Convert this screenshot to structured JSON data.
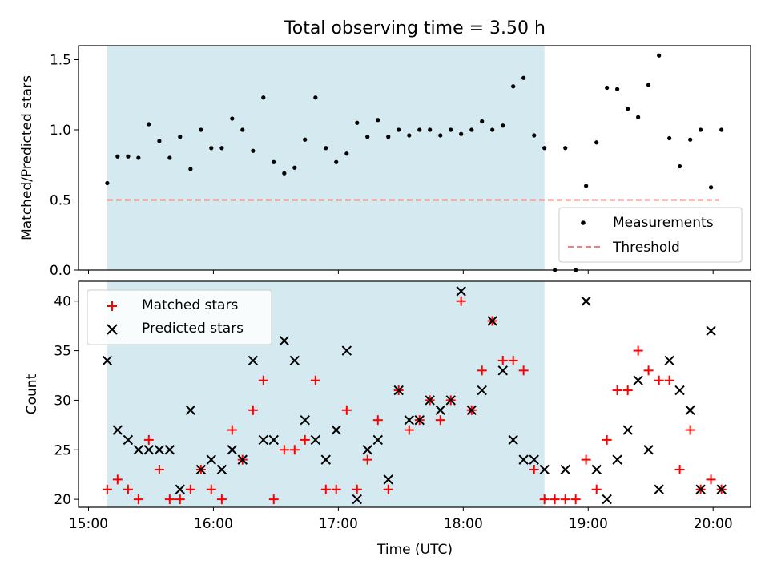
{
  "chart_data": {
    "title": "Total observing time = 3.50 h",
    "xlabel": "Time (UTC)",
    "x_ticks": [
      {
        "value": 15.0,
        "label": "15:00"
      },
      {
        "value": 16.0,
        "label": "16:00"
      },
      {
        "value": 17.0,
        "label": "17:00"
      },
      {
        "value": 18.0,
        "label": "18:00"
      },
      {
        "value": 19.0,
        "label": "19:00"
      },
      {
        "value": 20.0,
        "label": "20:00"
      }
    ],
    "xlim": [
      14.92,
      20.3
    ],
    "observing_window": [
      15.15,
      18.65
    ],
    "colors": {
      "window": "#d4eaf0",
      "measurement": "#000000",
      "threshold": "#f08080",
      "matched": "#ff0000",
      "predicted": "#000000"
    },
    "panels": [
      {
        "id": "ratio",
        "ylabel": "Matched/Predicted stars",
        "ylim": [
          0,
          1.6
        ],
        "yticks": [
          0.0,
          0.5,
          1.0,
          1.5
        ],
        "ytick_labels": [
          "0.0",
          "0.5",
          "1.0",
          "1.5"
        ],
        "legend": {
          "position": "lower-right",
          "entries": [
            "Measurements",
            "Threshold"
          ]
        },
        "threshold": {
          "value": 0.5,
          "x_range": [
            15.15,
            20.05
          ],
          "name": "Threshold"
        },
        "measurements": {
          "name": "Measurements",
          "x": [
            15.15,
            15.233,
            15.317,
            15.4,
            15.483,
            15.567,
            15.65,
            15.733,
            15.817,
            15.9,
            15.983,
            16.067,
            16.15,
            16.233,
            16.317,
            16.4,
            16.483,
            16.567,
            16.65,
            16.733,
            16.817,
            16.9,
            16.983,
            17.067,
            17.15,
            17.233,
            17.317,
            17.4,
            17.483,
            17.567,
            17.65,
            17.733,
            17.817,
            17.9,
            17.983,
            18.067,
            18.15,
            18.233,
            18.317,
            18.4,
            18.483,
            18.567,
            18.65,
            18.733,
            18.817,
            18.9,
            18.983,
            19.067,
            19.15,
            19.233,
            19.317,
            19.4,
            19.483,
            19.567,
            19.65,
            19.733,
            19.817,
            19.9,
            19.983,
            20.067
          ],
          "y": [
            0.62,
            0.81,
            0.81,
            0.8,
            1.04,
            0.92,
            0.8,
            0.95,
            0.72,
            1.0,
            0.87,
            0.87,
            1.08,
            1.0,
            0.85,
            1.23,
            0.77,
            0.69,
            0.73,
            0.93,
            1.23,
            0.87,
            0.77,
            0.83,
            1.05,
            0.95,
            1.07,
            0.95,
            1.0,
            0.96,
            1.0,
            1.0,
            0.96,
            1.0,
            0.97,
            1.0,
            1.06,
            1.0,
            1.03,
            1.31,
            1.37,
            0.96,
            0.87,
            0.0,
            0.87,
            0.0,
            0.6,
            0.91,
            1.3,
            1.29,
            1.15,
            1.09,
            1.32,
            1.53,
            0.94,
            0.74,
            0.93,
            1.0,
            0.59,
            1.0
          ]
        }
      },
      {
        "id": "counts",
        "ylabel": "Count",
        "ylim": [
          19.2,
          42
        ],
        "yticks": [
          20,
          25,
          30,
          35,
          40
        ],
        "ytick_labels": [
          "20",
          "25",
          "30",
          "35",
          "40"
        ],
        "legend": {
          "position": "upper-left",
          "entries": [
            "Matched stars",
            "Predicted stars"
          ]
        },
        "series": [
          {
            "name": "Matched stars",
            "marker": "plus",
            "x": [
              15.15,
              15.233,
              15.317,
              15.4,
              15.483,
              15.567,
              15.65,
              15.733,
              15.817,
              15.9,
              15.983,
              16.067,
              16.15,
              16.233,
              16.317,
              16.4,
              16.483,
              16.567,
              16.65,
              16.733,
              16.817,
              16.9,
              16.983,
              17.067,
              17.15,
              17.233,
              17.317,
              17.4,
              17.483,
              17.567,
              17.65,
              17.733,
              17.817,
              17.9,
              17.983,
              18.067,
              18.15,
              18.233,
              18.317,
              18.4,
              18.483,
              18.567,
              18.65,
              18.733,
              18.817,
              18.9,
              18.983,
              19.067,
              19.15,
              19.233,
              19.317,
              19.4,
              19.483,
              19.567,
              19.65,
              19.733,
              19.817,
              19.9,
              19.983,
              20.067
            ],
            "values": [
              21,
              22,
              21,
              20,
              26,
              23,
              20,
              20,
              21,
              23,
              21,
              20,
              27,
              24,
              29,
              32,
              20,
              25,
              25,
              26,
              32,
              21,
              21,
              29,
              21,
              24,
              28,
              21,
              31,
              27,
              28,
              30,
              28,
              30,
              40,
              29,
              33,
              38,
              34,
              34,
              33,
              23,
              20,
              20,
              20,
              20,
              24,
              21,
              26,
              31,
              31,
              35,
              33,
              32,
              32,
              23,
              27,
              21,
              22,
              21
            ]
          },
          {
            "name": "Predicted stars",
            "marker": "x",
            "x": [
              15.15,
              15.233,
              15.317,
              15.4,
              15.483,
              15.567,
              15.65,
              15.733,
              15.817,
              15.9,
              15.983,
              16.067,
              16.15,
              16.233,
              16.317,
              16.4,
              16.483,
              16.567,
              16.65,
              16.733,
              16.817,
              16.9,
              16.983,
              17.067,
              17.15,
              17.233,
              17.317,
              17.4,
              17.483,
              17.567,
              17.65,
              17.733,
              17.817,
              17.9,
              17.983,
              18.067,
              18.15,
              18.233,
              18.317,
              18.4,
              18.483,
              18.567,
              18.65,
              18.817,
              18.983,
              19.067,
              19.15,
              19.233,
              19.317,
              19.4,
              19.483,
              19.567,
              19.65,
              19.733,
              19.817,
              19.9,
              19.983,
              20.067
            ],
            "values": [
              34,
              27,
              26,
              25,
              25,
              25,
              25,
              21,
              29,
              23,
              24,
              23,
              25,
              24,
              34,
              26,
              26,
              36,
              34,
              28,
              26,
              24,
              27,
              35,
              20,
              25,
              26,
              22,
              31,
              28,
              28,
              30,
              29,
              30,
              41,
              29,
              31,
              38,
              33,
              26,
              24,
              24,
              23,
              23,
              40,
              23,
              20,
              24,
              27,
              32,
              25,
              21,
              34,
              31,
              29,
              21,
              37,
              21
            ]
          }
        ]
      }
    ]
  }
}
